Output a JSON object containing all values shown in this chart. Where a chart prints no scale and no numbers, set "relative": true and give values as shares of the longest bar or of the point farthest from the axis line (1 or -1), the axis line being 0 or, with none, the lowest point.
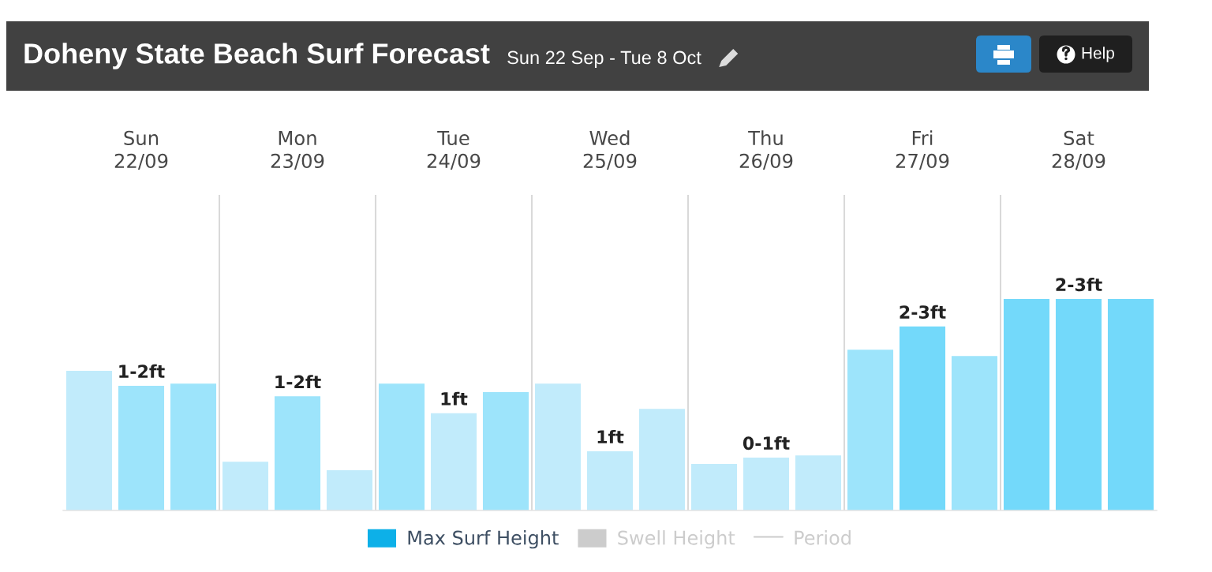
{
  "chart_data": {
    "type": "bar",
    "title": "Doheny State Beach Surf Forecast",
    "subtitle": "Sun 22 Sep - Tue 8 Oct",
    "annotations": [
      "Help",
      "1-2ft",
      "1-2ft",
      "1ft",
      "1ft",
      "0-1ft",
      "2-3ft",
      "2-3ft"
    ],
    "categories": [
      null,
      "Sun\n22/09",
      null,
      null,
      "Mon\n23/09",
      null,
      null,
      "Tue\n24/09",
      null,
      null,
      "Wed\n25/09",
      null,
      null,
      "Thu\n26/09",
      null,
      null,
      "Fri\n27/09",
      null,
      null,
      "Sat\n28/09",
      null
    ],
    "relative": true,
    "grid": "x",
    "legend": "bottom",
    "series": [
      {
        "name": "Max Surf Height",
        "type": "bar",
        "color": "#0db0e8",
        "colors": [
          "#c1ebfb",
          "#9de4fb",
          "#9de4fb",
          "#c1ebfb",
          "#9de4fb",
          "#c1ebfb",
          "#9de4fb",
          "#c1ebfb",
          "#9de4fb",
          "#c1ebfb",
          "#c1ebfb",
          "#c1ebfb",
          "#c1ebfb",
          "#c1ebfb",
          "#c1ebfb",
          "#9de4fb",
          "#73d9fa",
          "#9de4fb",
          "#73d9fa",
          "#73d9fa",
          "#73d9fa"
        ],
        "values": [
          0.66,
          0.59,
          0.6,
          0.23,
          0.54,
          0.19,
          0.6,
          0.46,
          0.56,
          0.6,
          0.28,
          0.48,
          0.22,
          0.25,
          0.26,
          0.76,
          0.87,
          0.73,
          1,
          1,
          1
        ]
      },
      {
        "name": "Swell Height",
        "type": "bar",
        "color": "#cccccc",
        "values": [
          null,
          null,
          null,
          null,
          null,
          null,
          null,
          null,
          null,
          null,
          null,
          null,
          null,
          null,
          null,
          null,
          null,
          null,
          null,
          null,
          null
        ]
      },
      {
        "name": "Period",
        "type": "line",
        "color": "#cccccc",
        "values": [
          null,
          null,
          null,
          null,
          null,
          null,
          null,
          null,
          null,
          null,
          null,
          null,
          null,
          null,
          null,
          null,
          null,
          null,
          null,
          null,
          null
        ]
      }
    ]
  }
}
